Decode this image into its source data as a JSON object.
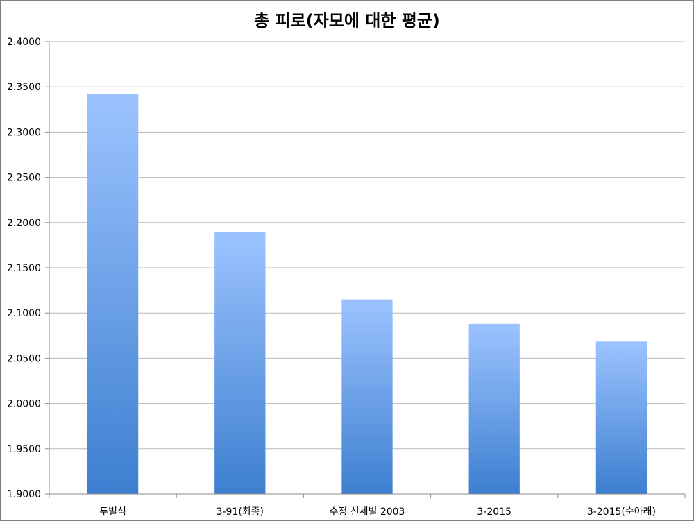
{
  "chart_data": {
    "type": "bar",
    "title": "총 피로(자모에 대한 평균)",
    "xlabel": "",
    "ylabel": "",
    "categories": [
      "두벌식",
      "3-91(최종)",
      "수정 신세벌 2003",
      "3-2015",
      "3-2015(순아래)"
    ],
    "values": [
      2.3425,
      2.1895,
      2.115,
      2.088,
      2.0685
    ],
    "ylim": [
      1.9,
      2.4
    ],
    "yticks": [
      "1.9000",
      "1.9500",
      "2.0000",
      "2.0500",
      "2.1000",
      "2.1500",
      "2.2000",
      "2.2500",
      "2.3000",
      "2.3500",
      "2.4000"
    ],
    "grid": true,
    "legend": "none",
    "colors": {
      "bar_top": "#9cc3ff",
      "bar_bottom": "#3d7fd0",
      "grid": "#b8b8b8",
      "axis": "#8c8c8c"
    }
  }
}
